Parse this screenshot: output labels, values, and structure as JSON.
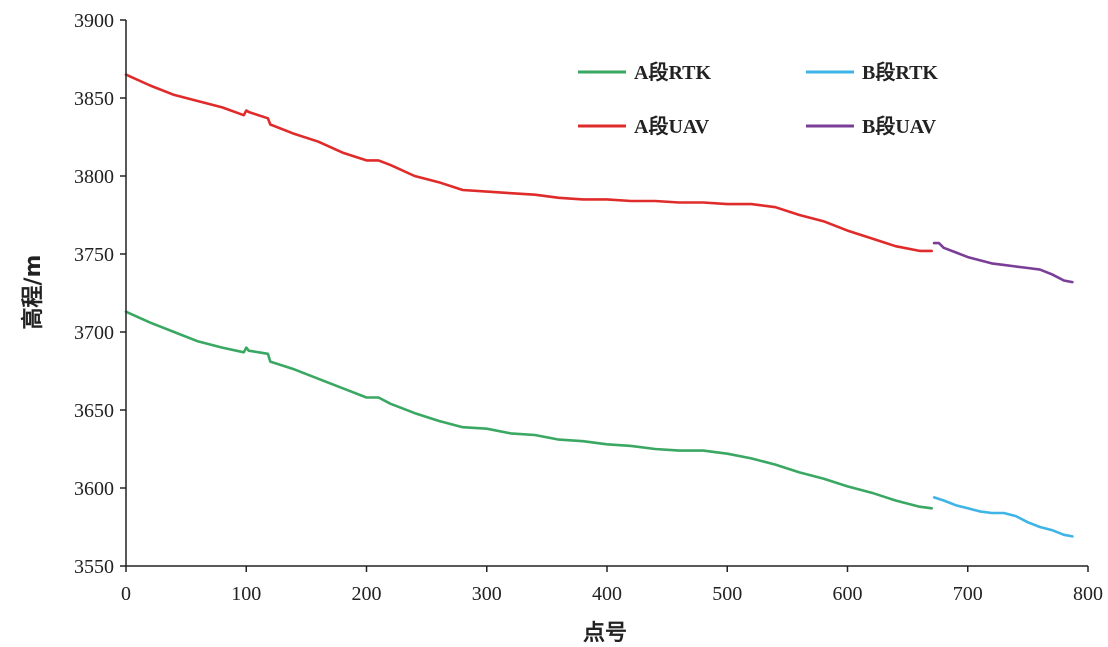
{
  "chart_data": {
    "type": "line",
    "title": "",
    "xlabel": "点号",
    "ylabel": "高程/m",
    "xlim": [
      0,
      800
    ],
    "ylim": [
      3550,
      3900
    ],
    "x_ticks": [
      0,
      100,
      200,
      300,
      400,
      500,
      600,
      700,
      800
    ],
    "y_ticks": [
      3550,
      3600,
      3650,
      3700,
      3750,
      3800,
      3850,
      3900
    ],
    "grid": false,
    "legend_position": "top-right",
    "series": [
      {
        "name": "A段RTK",
        "color": "#3aa863",
        "x": [
          0,
          20,
          40,
          60,
          80,
          98,
          100,
          102,
          118,
          120,
          140,
          160,
          180,
          200,
          210,
          220,
          240,
          260,
          280,
          300,
          320,
          340,
          360,
          380,
          400,
          420,
          440,
          460,
          480,
          500,
          520,
          540,
          560,
          580,
          600,
          620,
          640,
          660,
          670
        ],
        "y": [
          3713,
          3706,
          3700,
          3694,
          3690,
          3687,
          3690,
          3688,
          3686,
          3681,
          3676,
          3670,
          3664,
          3658,
          3658,
          3654,
          3648,
          3643,
          3639,
          3638,
          3635,
          3634,
          3631,
          3630,
          3628,
          3627,
          3625,
          3624,
          3624,
          3622,
          3619,
          3615,
          3610,
          3606,
          3601,
          3597,
          3592,
          3588,
          3587
        ]
      },
      {
        "name": "A段UAV",
        "color": "#e02b2b",
        "x": [
          0,
          20,
          40,
          60,
          80,
          98,
          100,
          102,
          118,
          120,
          140,
          160,
          180,
          200,
          210,
          220,
          240,
          260,
          280,
          300,
          320,
          340,
          360,
          380,
          400,
          420,
          440,
          460,
          480,
          500,
          520,
          540,
          560,
          580,
          600,
          620,
          640,
          660,
          670
        ],
        "y": [
          3865,
          3858,
          3852,
          3848,
          3844,
          3839,
          3842,
          3841,
          3837,
          3833,
          3827,
          3822,
          3815,
          3810,
          3810,
          3807,
          3800,
          3796,
          3791,
          3790,
          3789,
          3788,
          3786,
          3785,
          3785,
          3784,
          3784,
          3783,
          3783,
          3782,
          3782,
          3780,
          3775,
          3771,
          3765,
          3760,
          3755,
          3752,
          3752
        ]
      },
      {
        "name": "B段RTK",
        "color": "#3fb4e6",
        "x": [
          672,
          680,
          690,
          700,
          710,
          720,
          730,
          740,
          750,
          760,
          770,
          780,
          787
        ],
        "y": [
          3594,
          3592,
          3589,
          3587,
          3585,
          3584,
          3584,
          3582,
          3578,
          3575,
          3573,
          3570,
          3569
        ]
      },
      {
        "name": "B段UAV",
        "color": "#7a3e96",
        "x": [
          672,
          676,
          680,
          690,
          700,
          710,
          720,
          730,
          740,
          750,
          760,
          770,
          780,
          787
        ],
        "y": [
          3757,
          3757,
          3754,
          3751,
          3748,
          3746,
          3744,
          3743,
          3742,
          3741,
          3740,
          3737,
          3733,
          3732
        ]
      }
    ],
    "legend_order": [
      "A段RTK",
      "B段RTK",
      "A段UAV",
      "B段UAV"
    ]
  }
}
